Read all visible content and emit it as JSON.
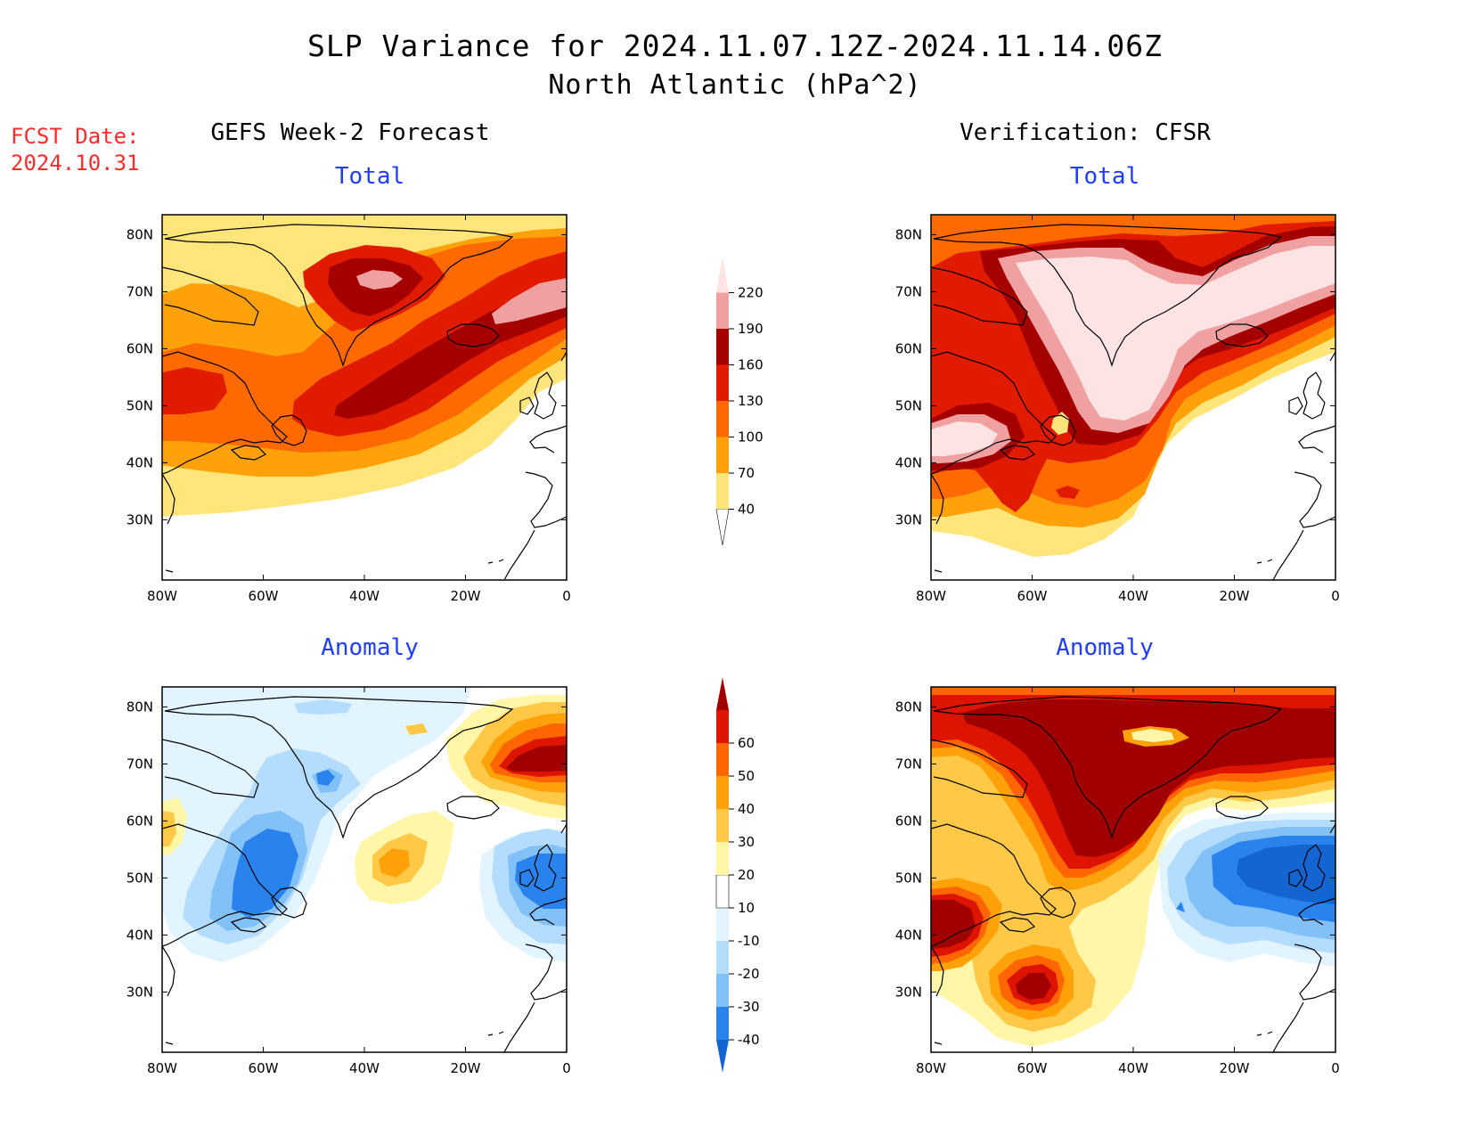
{
  "title": {
    "line1": "SLP Variance for 2024.11.07.12Z-2024.11.14.06Z",
    "line2": "North Atlantic (hPa^2)"
  },
  "fcst": {
    "label": "FCST Date:",
    "date": "2024.10.31"
  },
  "columns": {
    "left_title": "GEFS Week-2 Forecast",
    "right_title": "Verification: CFSR"
  },
  "panels": {
    "top_left": "Total",
    "top_right": "Total",
    "bottom_left": "Anomaly",
    "bottom_right": "Anomaly"
  },
  "axes": {
    "lon_labels": [
      "80W",
      "60W",
      "40W",
      "20W",
      "0"
    ],
    "lat_labels": [
      "80N",
      "70N",
      "60N",
      "50N",
      "40N",
      "30N"
    ]
  },
  "colorbars": {
    "total": {
      "levels": [
        "40",
        "70",
        "100",
        "130",
        "160",
        "190",
        "220"
      ],
      "colors": [
        "#ffffff",
        "#ffe57a",
        "#ffa10a",
        "#ff6a00",
        "#e01b00",
        "#a50000",
        "#f0a0a0",
        "#fde3e3"
      ]
    },
    "anomaly": {
      "levels": [
        "-40",
        "-30",
        "-20",
        "-10",
        "10",
        "20",
        "30",
        "40",
        "50",
        "60"
      ],
      "colors": [
        "#1464d2",
        "#2a82ec",
        "#82c0f8",
        "#b4dcfc",
        "#e2f4ff",
        "#ffffff",
        "#fff6a8",
        "#ffc846",
        "#ffa20a",
        "#ff6500",
        "#dc1400",
        "#a00000"
      ]
    }
  }
}
